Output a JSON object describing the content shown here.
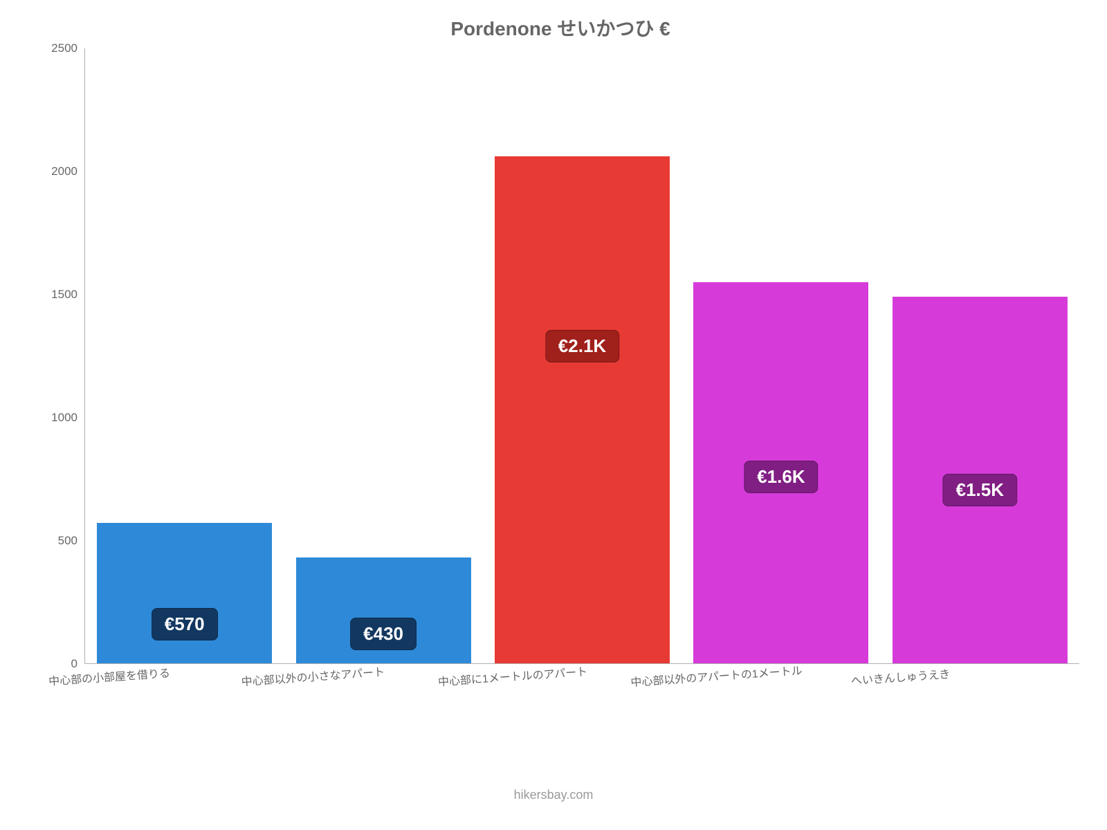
{
  "chart": {
    "type": "bar",
    "title": "Pordenone せいかつひ €",
    "title_color": "#666666",
    "title_fontsize": 28,
    "background_color": "#ffffff",
    "axis_color": "#b0b0b0",
    "tick_label_color": "#666666",
    "tick_label_fontsize": 17,
    "x_label_fontsize": 16,
    "x_label_rotation_deg": -4,
    "ylim": [
      0,
      2500
    ],
    "ytick_step": 500,
    "yticks": [
      0,
      500,
      1000,
      1500,
      2000,
      2500
    ],
    "bar_width_ratio": 0.88,
    "value_badge_fontsize": 26,
    "value_badge_radius": 8,
    "categories": [
      "中心部の小部屋を借りる",
      "中心部以外の小さなアパート",
      "中心部に1メートルのアパート",
      "中心部以外のアパートの1メートル",
      "へいきんしゅうえき"
    ],
    "values": [
      570,
      430,
      2060,
      1550,
      1490
    ],
    "value_labels": [
      "€570",
      "€430",
      "€2.1K",
      "€1.6K",
      "€1.5K"
    ],
    "bar_colors": [
      "#2e8ad8",
      "#2e8ad8",
      "#e83a34",
      "#d63bda",
      "#d63bda"
    ],
    "badge_bg_colors": [
      "#123861",
      "#123861",
      "#a0201c",
      "#801e83",
      "#801e83"
    ],
    "credit": "hikersbay.com",
    "credit_color": "#9a9a9a",
    "credit_fontsize": 18
  }
}
